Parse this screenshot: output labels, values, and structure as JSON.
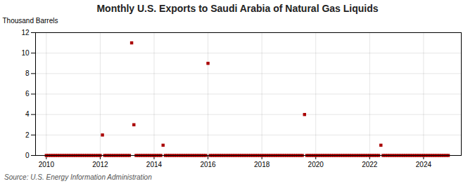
{
  "chart_data": {
    "type": "scatter",
    "title": "Monthly U.S. Exports to Saudi Arabia of Natural Gas Liquids",
    "ylabel": "Thousand Barrels",
    "source": "Source: U.S. Energy Information Administration",
    "color": "#aa0000",
    "marker": "square",
    "grid": true,
    "xlim": [
      2009.6,
      2025.4
    ],
    "xticks": [
      2010,
      2012,
      2014,
      2016,
      2018,
      2020,
      2022,
      2024
    ],
    "ylim": [
      0,
      12
    ],
    "yticks": [
      0,
      2,
      4,
      6,
      8,
      10,
      12
    ],
    "x": [
      2010.0,
      2010.083,
      2010.167,
      2010.25,
      2010.333,
      2010.417,
      2010.5,
      2010.583,
      2010.667,
      2010.75,
      2010.833,
      2010.917,
      2011.0,
      2011.083,
      2011.167,
      2011.25,
      2011.333,
      2011.417,
      2011.5,
      2011.583,
      2011.667,
      2011.75,
      2011.833,
      2011.917,
      2012.0,
      2012.083,
      2012.167,
      2012.25,
      2012.333,
      2012.417,
      2012.5,
      2012.583,
      2012.667,
      2012.75,
      2012.833,
      2012.917,
      2013.0,
      2013.083,
      2013.167,
      2013.25,
      2013.333,
      2013.417,
      2013.5,
      2013.583,
      2013.667,
      2013.75,
      2013.833,
      2013.917,
      2014.0,
      2014.083,
      2014.167,
      2014.25,
      2014.333,
      2014.417,
      2014.5,
      2014.583,
      2014.667,
      2014.75,
      2014.833,
      2014.917,
      2015.0,
      2015.083,
      2015.167,
      2015.25,
      2015.333,
      2015.417,
      2015.5,
      2015.583,
      2015.667,
      2015.75,
      2015.833,
      2015.917,
      2016.0,
      2016.083,
      2016.167,
      2016.25,
      2016.333,
      2016.417,
      2016.5,
      2016.583,
      2016.667,
      2016.75,
      2016.833,
      2016.917,
      2017.0,
      2017.083,
      2017.167,
      2017.25,
      2017.333,
      2017.417,
      2017.5,
      2017.583,
      2017.667,
      2017.75,
      2017.833,
      2017.917,
      2018.0,
      2018.083,
      2018.167,
      2018.25,
      2018.333,
      2018.417,
      2018.5,
      2018.583,
      2018.667,
      2018.75,
      2018.833,
      2018.917,
      2019.0,
      2019.083,
      2019.167,
      2019.25,
      2019.333,
      2019.417,
      2019.5,
      2019.583,
      2019.667,
      2019.75,
      2019.833,
      2019.917,
      2020.0,
      2020.083,
      2020.167,
      2020.25,
      2020.333,
      2020.417,
      2020.5,
      2020.583,
      2020.667,
      2020.75,
      2020.833,
      2020.917,
      2021.0,
      2021.083,
      2021.167,
      2021.25,
      2021.333,
      2021.417,
      2021.5,
      2021.583,
      2021.667,
      2021.75,
      2021.833,
      2021.917,
      2022.0,
      2022.083,
      2022.167,
      2022.25,
      2022.333,
      2022.417,
      2022.5,
      2022.583,
      2022.667,
      2022.75,
      2022.833,
      2022.917,
      2023.0,
      2023.083,
      2023.167,
      2023.25,
      2023.333,
      2023.417,
      2023.5,
      2023.583,
      2023.667,
      2023.75,
      2023.833,
      2023.917,
      2024.0,
      2024.083,
      2024.167,
      2024.25,
      2024.333,
      2024.417,
      2024.5,
      2024.583,
      2024.667,
      2024.75,
      2024.833,
      2024.917
    ],
    "values": [
      0,
      0,
      0,
      0,
      0,
      0,
      0,
      0,
      0,
      0,
      0,
      0,
      0,
      0,
      0,
      0,
      0,
      0,
      0,
      0,
      0,
      0,
      0,
      0,
      0,
      2,
      0,
      0,
      0,
      0,
      0,
      0,
      0,
      0,
      0,
      0,
      0,
      0,
      11,
      3,
      0,
      0,
      0,
      0,
      0,
      0,
      0,
      0,
      0,
      0,
      0,
      0,
      1,
      0,
      0,
      0,
      0,
      0,
      0,
      0,
      0,
      0,
      0,
      0,
      0,
      0,
      0,
      0,
      0,
      0,
      0,
      0,
      9,
      0,
      0,
      0,
      0,
      0,
      0,
      0,
      0,
      0,
      0,
      0,
      0,
      0,
      0,
      0,
      0,
      0,
      0,
      0,
      0,
      0,
      0,
      0,
      0,
      0,
      0,
      0,
      0,
      0,
      0,
      0,
      0,
      0,
      0,
      0,
      0,
      0,
      0,
      0,
      0,
      0,
      0,
      4,
      0,
      0,
      0,
      0,
      0,
      0,
      0,
      0,
      0,
      0,
      0,
      0,
      0,
      0,
      0,
      0,
      0,
      0,
      0,
      0,
      0,
      0,
      0,
      0,
      0,
      0,
      0,
      0,
      0,
      0,
      0,
      0,
      0,
      1,
      0,
      0,
      0,
      0,
      0,
      0,
      0,
      0,
      0,
      0,
      0,
      0,
      0,
      0,
      0,
      0,
      0,
      0,
      0,
      0,
      0,
      0,
      0,
      0,
      0,
      0,
      0,
      0,
      0,
      0
    ]
  }
}
